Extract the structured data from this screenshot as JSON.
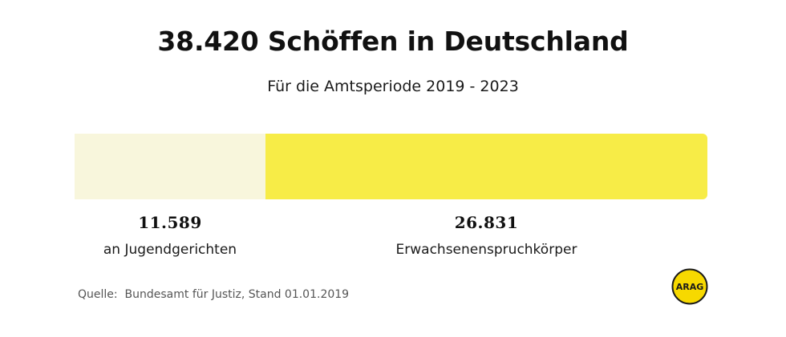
{
  "title": "38.420 Schöffen in Deutschland",
  "subtitle": "Für die Amtsperiode 2019 - 2023",
  "source": "Quelle:  Bundesamt für Justiz, Stand 01.01.2019",
  "logo": {
    "text": "ARAG",
    "fill": "#f7d900",
    "outline": "#1a1a1a"
  },
  "colors": {
    "jugend": "#f8f6dc",
    "erwachsen": "#f7ec47"
  },
  "chart_data": {
    "type": "bar",
    "orientation": "horizontal-stacked",
    "title": "38.420 Schöffen in Deutschland",
    "subtitle": "Für die Amtsperiode 2019 - 2023",
    "total": 38420,
    "categories": [
      "an Jugendgerichten",
      "Erwachsenenspruchkörper"
    ],
    "values": [
      11589,
      26831
    ],
    "value_labels": [
      "11.589",
      "26.831"
    ],
    "legend": "none",
    "grid": false
  }
}
